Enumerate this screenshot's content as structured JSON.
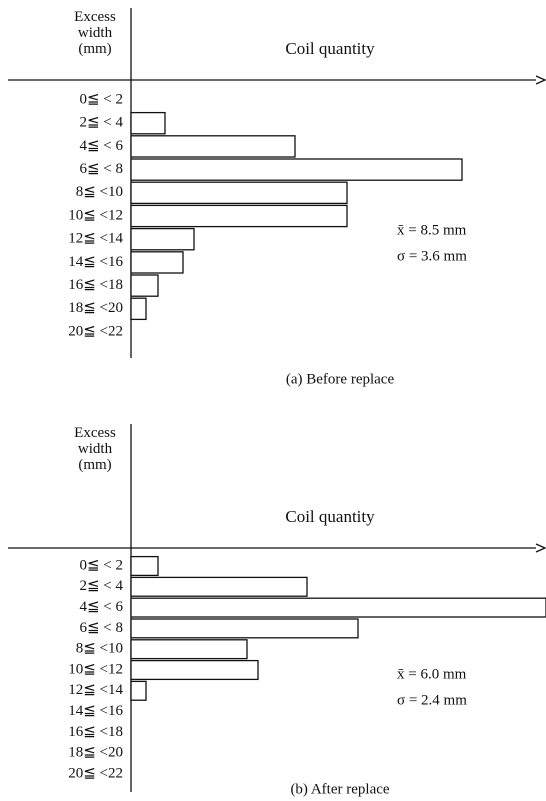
{
  "chart_data": [
    {
      "type": "barh",
      "title": "(a) Before replace",
      "ylabel": "Excess width (mm)",
      "xlabel": "Coil quantity",
      "categories": [
        "0≦ < 2",
        "2≦ < 4",
        "4≦ < 6",
        "6≦ < 8",
        "8≦ <10",
        "10≦ <12",
        "12≦ <14",
        "14≦ <16",
        "16≦ <18",
        "18≦ <20",
        "20≦ <22"
      ],
      "values": [
        0,
        34,
        164,
        331,
        216,
        216,
        63,
        52,
        27,
        15,
        0
      ],
      "color": "#ffffff",
      "xlim": [
        0,
        415
      ],
      "annotations": [
        "x̄ = 8.5 mm",
        "σ = 3.6 mm"
      ]
    },
    {
      "type": "barh",
      "title": "(b) After replace",
      "ylabel": "Excess width (mm)",
      "xlabel": "Coil quantity",
      "categories": [
        "0≦ < 2",
        "2≦ < 4",
        "4≦ < 6",
        "6≦ < 8",
        "8≦ <10",
        "10≦ <12",
        "12≦ <14",
        "14≦ <16",
        "16≦ <18",
        "18≦ <20",
        "20≦ <22"
      ],
      "values": [
        27,
        176,
        415,
        227,
        116,
        127,
        15,
        0,
        0,
        0,
        0
      ],
      "color": "#ffffff",
      "xlim": [
        0,
        415
      ],
      "annotations": [
        "x̄ = 6.0 mm",
        "σ = 2.4 mm"
      ]
    }
  ]
}
